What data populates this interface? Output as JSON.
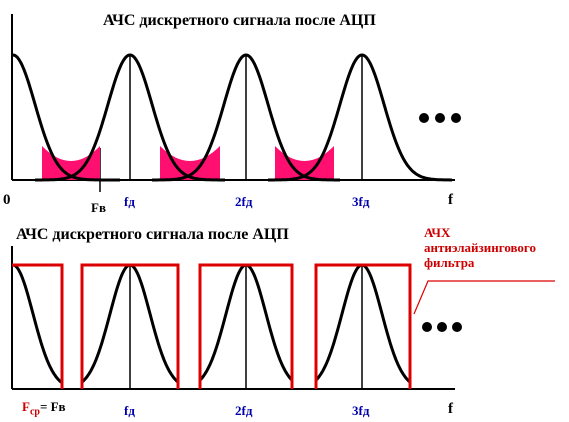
{
  "top_panel": {
    "title": "АЧС дискретного сигнала после АЦП",
    "origin": "0",
    "axis_f": "f",
    "fb_label": "Fв",
    "tick_labels": [
      "fд",
      "2fд",
      "3fд"
    ],
    "ellipsis": "•••",
    "alias_color": "#ff0f6f"
  },
  "bottom_panel": {
    "title": "АЧС дискретного сигнала после АЦП",
    "axis_f": "f",
    "fcp_main": "F",
    "fcp_sub": "ср",
    "fcp_rest": "= Fв",
    "tick_labels": [
      "fд",
      "2fд",
      "3fд"
    ],
    "ellipsis": "•••",
    "filter_note": [
      "АЧХ",
      "антиэлайзингового",
      "фильтра"
    ],
    "filter_color": "#dd0000"
  },
  "colors": {
    "curve": "#000000",
    "tick_label": "#0000aa"
  }
}
